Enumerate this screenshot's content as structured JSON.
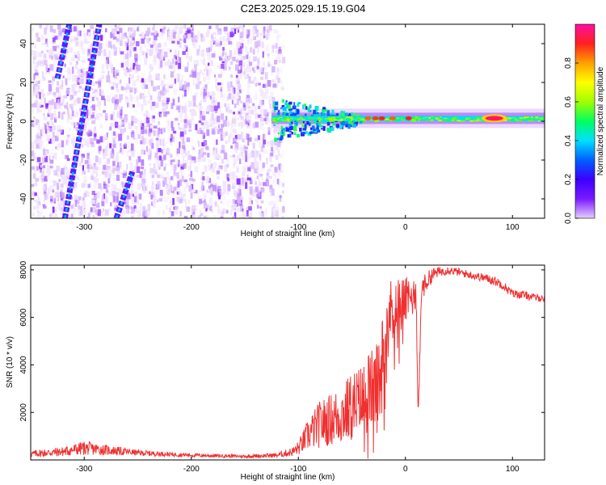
{
  "title": "C2E3.2025.029.15.19.G04",
  "chart_data": [
    {
      "type": "heatmap",
      "title": "C2E3.2025.029.15.19.G04",
      "xlabel": "Height of straight line (km)",
      "ylabel": "Frequency (Hz)",
      "xlim": [
        -350,
        130
      ],
      "ylim": [
        -50,
        50
      ],
      "xticks": [
        -300,
        -200,
        -100,
        0,
        100
      ],
      "yticks": [
        -40,
        -20,
        0,
        20,
        40
      ],
      "colorbar": {
        "label": "Normalized spectral amplitude",
        "range": [
          0,
          1
        ],
        "ticks": [
          0.0,
          0.2,
          0.4,
          0.6,
          0.8
        ],
        "tick_labels": [
          "0.0",
          "0.2",
          "0.4",
          "0.6",
          "0.8"
        ],
        "colormap": [
          "#e6cfff",
          "#7a1aff",
          "#3b00ff",
          "#0060ff",
          "#00e0ff",
          "#00ff60",
          "#a0ff00",
          "#ffff00",
          "#ffa000",
          "#ff2020",
          "#ff10a0"
        ]
      },
      "features": {
        "noise_region_x": [
          -350,
          -115
        ],
        "carrier_line": {
          "x": [
            -125,
            130
          ],
          "frequency": 1.5,
          "peak_x": 83,
          "peak_amplitude": 0.95
        },
        "streaks": [
          {
            "x0": -318,
            "y0": -50,
            "x1": -286,
            "y1": 50
          },
          {
            "x0": -270,
            "y0": -50,
            "x1": -255,
            "y1": -26
          },
          {
            "x0": -325,
            "y0": 22,
            "x1": -314,
            "y1": 50
          }
        ]
      }
    },
    {
      "type": "line",
      "xlabel": "Height of straight line (km)",
      "ylabel": "SNR (10 * v/v)",
      "xlim": [
        -350,
        130
      ],
      "ylim": [
        0,
        8200
      ],
      "xticks": [
        -300,
        -200,
        -100,
        0,
        100
      ],
      "yticks": [
        2000,
        4000,
        6000,
        8000
      ],
      "color": "#f03030",
      "series": [
        {
          "x": [
            -350,
            -320,
            -300,
            -280,
            -250,
            -200,
            -150,
            -120,
            -105,
            -100,
            -90,
            -80,
            -70,
            -60,
            -50,
            -40,
            -35,
            -30,
            -25,
            -20,
            -18,
            -15,
            -10,
            -5,
            0,
            5,
            10,
            12,
            15,
            20,
            25,
            30,
            35,
            40,
            50,
            60,
            70,
            80,
            90,
            100,
            110,
            120,
            130
          ],
          "y": [
            250,
            350,
            500,
            420,
            300,
            200,
            150,
            200,
            350,
            500,
            1100,
            1500,
            1700,
            1900,
            2200,
            2500,
            2800,
            3000,
            3200,
            4800,
            5800,
            6200,
            6500,
            6600,
            6700,
            6800,
            7000,
            1700,
            7200,
            7500,
            7800,
            7900,
            7950,
            8000,
            7900,
            7800,
            7700,
            7600,
            7400,
            7000,
            6950,
            6850,
            6800
          ],
          "noise_amplitude": [
            150,
            200,
            300,
            220,
            120,
            80,
            70,
            100,
            200,
            300,
            700,
            1000,
            1100,
            1300,
            1500,
            1600,
            1800,
            1700,
            1900,
            1800,
            1500,
            1400,
            1300,
            1200,
            1000,
            900,
            700,
            300,
            500,
            400,
            300,
            220,
            200,
            180,
            170,
            170,
            170,
            200,
            200,
            180,
            160,
            160,
            160
          ]
        }
      ]
    }
  ]
}
